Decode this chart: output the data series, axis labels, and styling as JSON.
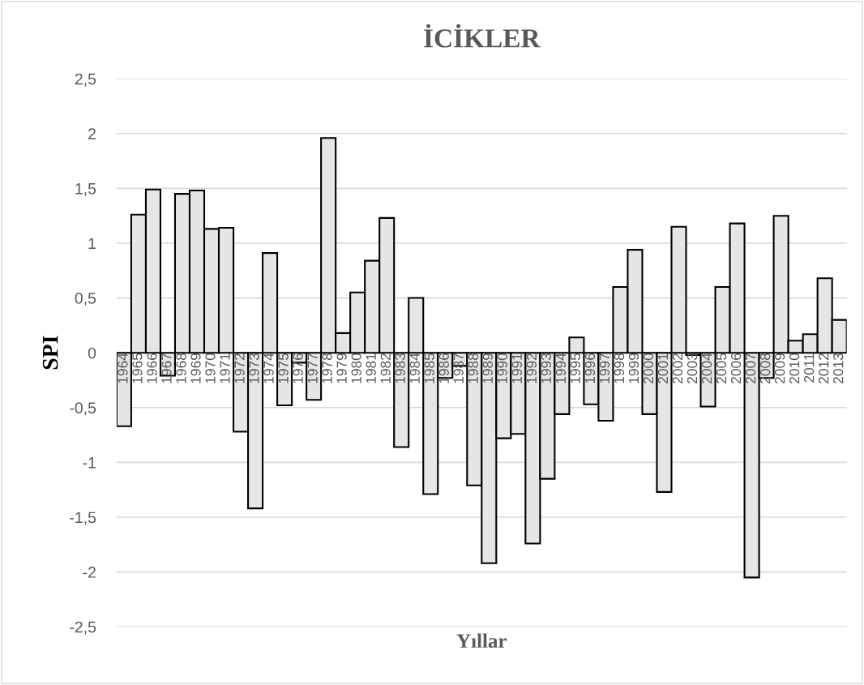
{
  "chart_data": {
    "type": "bar",
    "title": "İCİKLER",
    "xlabel": "Yıllar",
    "ylabel": "SPI",
    "categories": [
      "1964",
      "1965",
      "1966",
      "1967",
      "1968",
      "1969",
      "1970",
      "1971",
      "1972",
      "1973",
      "1974",
      "1975",
      "1976",
      "1977",
      "1978",
      "1979",
      "1980",
      "1981",
      "1982",
      "1983",
      "1984",
      "1985",
      "1986",
      "1987",
      "1988",
      "1989",
      "1990",
      "1991",
      "1992",
      "1993",
      "1994",
      "1995",
      "1996",
      "1997",
      "1998",
      "1999",
      "2000",
      "2001",
      "2002",
      "2003",
      "2004",
      "2005",
      "2006",
      "2007",
      "2008",
      "2009",
      "2010",
      "2011",
      "2012",
      "2013"
    ],
    "values": [
      -0.67,
      1.26,
      1.49,
      -0.21,
      1.45,
      1.48,
      1.13,
      1.14,
      -0.72,
      -1.42,
      0.91,
      -0.48,
      -0.09,
      -0.43,
      1.96,
      0.18,
      0.55,
      0.84,
      1.23,
      -0.86,
      0.5,
      -1.29,
      -0.23,
      -0.12,
      -1.21,
      -1.92,
      -0.78,
      -0.74,
      -1.74,
      -1.15,
      -0.56,
      0.14,
      -0.47,
      -0.62,
      0.6,
      0.94,
      -0.56,
      -1.27,
      1.15,
      -0.02,
      -0.49,
      0.6,
      1.18,
      -2.05,
      -0.23,
      1.25,
      0.11,
      0.17,
      0.68,
      0.3
    ],
    "color": "#e7e6e6",
    "ylim": [
      -2.5,
      2.5
    ],
    "yticks": [
      {
        "value": -2.5,
        "label": "-2,5"
      },
      -2,
      {
        "value": -1.5,
        "label": "-1,5"
      },
      -1,
      {
        "value": -0.5,
        "label": "-0,5"
      },
      0,
      {
        "value": 0.5,
        "label": "0,5"
      },
      1,
      {
        "value": 1.5,
        "label": "1,5"
      },
      2,
      {
        "value": 2.5,
        "label": "2,5"
      }
    ],
    "grid": "y"
  }
}
